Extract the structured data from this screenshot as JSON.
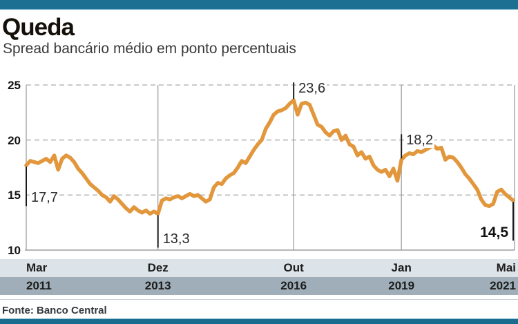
{
  "header": {
    "title": "Queda",
    "subtitle": "Spread bancário médio em ponto percentuais"
  },
  "footer": {
    "source": "Fonte: Banco Central"
  },
  "chart_data": {
    "type": "line",
    "title": "Queda",
    "subtitle": "Spread bancário médio em ponto percentuais",
    "series_name": "Spread bancário médio (pontos percentuais)",
    "frequency": "monthly",
    "x_start": "Mar 2011",
    "x_end": "Mai 2021",
    "ylim": [
      10,
      25
    ],
    "y_ticks": [
      25,
      20,
      15,
      10
    ],
    "grid": "dashed-horizontal, solid-vertical",
    "legend": "none",
    "x_ticks": [
      {
        "month": "Mar",
        "year": "2011",
        "index": 0,
        "align": "left"
      },
      {
        "month": "Dez",
        "year": "2013",
        "index": 33,
        "align": "center"
      },
      {
        "month": "Out",
        "year": "2016",
        "index": 67,
        "align": "center"
      },
      {
        "month": "Jan",
        "year": "2019",
        "index": 94,
        "align": "center"
      },
      {
        "month": "Mai",
        "year": "2021",
        "index": 122,
        "align": "right"
      }
    ],
    "annotations": [
      {
        "text": "17,7",
        "index": 0,
        "value": 17.7,
        "dir": "down",
        "len": 57,
        "side": "right",
        "bold": false
      },
      {
        "text": "13,3",
        "index": 33,
        "value": 13.3,
        "dir": "down",
        "len": 47,
        "side": "right",
        "bold": false
      },
      {
        "text": "23,6",
        "index": 67,
        "value": 23.6,
        "dir": "up",
        "len": 24,
        "side": "right",
        "bold": false
      },
      {
        "text": "18,2",
        "index": 94,
        "value": 18.2,
        "dir": "up",
        "len": 35,
        "side": "right",
        "bold": false
      },
      {
        "text": "14,5",
        "index": 122,
        "value": 14.5,
        "dir": "down",
        "len": 56,
        "side": "left",
        "bold": true
      }
    ],
    "values": [
      17.7,
      18.1,
      18.0,
      17.9,
      18.1,
      18.3,
      18.0,
      18.6,
      17.3,
      18.3,
      18.6,
      18.4,
      18.0,
      17.4,
      17.0,
      16.5,
      16.0,
      15.7,
      15.4,
      15.0,
      14.8,
      14.4,
      14.9,
      14.6,
      14.2,
      13.8,
      13.5,
      13.9,
      13.6,
      13.4,
      13.6,
      13.3,
      13.5,
      13.3,
      14.5,
      14.7,
      14.6,
      14.8,
      14.9,
      14.7,
      14.9,
      15.1,
      14.9,
      15.0,
      14.7,
      14.4,
      14.6,
      15.7,
      16.1,
      16.0,
      16.5,
      16.8,
      17.0,
      17.5,
      18.1,
      17.9,
      18.5,
      19.1,
      19.6,
      20.0,
      21.0,
      21.6,
      22.3,
      22.6,
      22.7,
      22.9,
      23.3,
      23.6,
      22.3,
      23.3,
      23.4,
      23.2,
      22.3,
      21.4,
      21.2,
      20.7,
      20.4,
      20.8,
      20.9,
      20.0,
      20.4,
      19.6,
      19.4,
      18.6,
      18.9,
      18.3,
      18.5,
      17.7,
      17.3,
      17.1,
      17.3,
      16.7,
      17.4,
      16.3,
      18.2,
      18.6,
      18.8,
      18.7,
      19.0,
      18.9,
      19.1,
      19.3,
      19.5,
      19.2,
      19.3,
      18.2,
      18.5,
      18.4,
      18.0,
      17.5,
      16.9,
      16.5,
      16.0,
      15.5,
      14.6,
      14.1,
      14.0,
      14.2,
      15.3,
      15.5,
      15.1,
      14.8,
      14.5
    ],
    "colors": {
      "line": "#e2973d",
      "grid_solid": "#9e9e9e",
      "grid_dashed": "#ababab",
      "annotation_tick": "#1a1a1a",
      "topbar": "#1e7092",
      "bottombar": "#1a6c8e",
      "band_month_bg": "#dce3e9",
      "band_year_bg": "#9faeb8"
    }
  }
}
